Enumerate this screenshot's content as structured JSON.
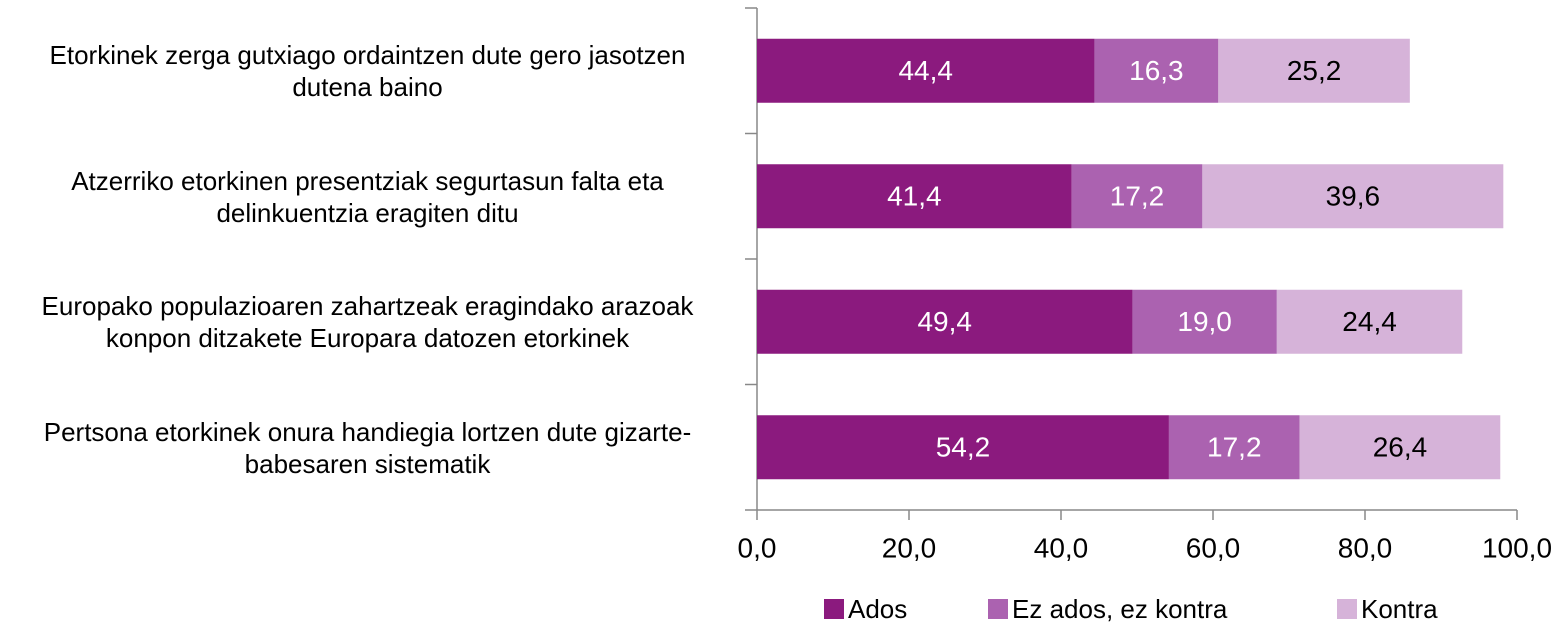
{
  "chart_data": {
    "type": "stacked_barh",
    "categories": [
      "Etorkinek zerga gutxiago ordaintzen dute gero jasotzen dutena baino",
      "Atzerriko etorkinen presentziak segurtasun falta eta delinkuentzia eragiten ditu",
      "Europako populazioaren zahartzeak eragindako arazoak konpon ditzakete Europara datozen etorkinek",
      "Pertsona etorkinek onura handiegia lortzen dute gizarte-babesaren sistematik"
    ],
    "series": [
      {
        "name": "Ados",
        "color": "#8b1a7e",
        "values": [
          44.4,
          41.4,
          49.4,
          54.2
        ],
        "value_labels": [
          "44,4",
          "41,4",
          "49,4",
          "54,2"
        ]
      },
      {
        "name": "Ez ados, ez kontra",
        "color": "#ab62b0",
        "values": [
          16.3,
          17.2,
          19.0,
          17.2
        ],
        "value_labels": [
          "16,3",
          "17,2",
          "19,0",
          "17,2"
        ]
      },
      {
        "name": "Kontra",
        "color": "#d6b3d9",
        "values": [
          25.2,
          39.6,
          24.4,
          26.4
        ],
        "value_labels": [
          "25,2",
          "39,6",
          "24,4",
          "26,4"
        ]
      }
    ],
    "xlim": [
      0,
      100
    ],
    "xticks": [
      {
        "value": 0,
        "label": "0,0"
      },
      {
        "value": 20,
        "label": "20,0"
      },
      {
        "value": 40,
        "label": "40,0"
      },
      {
        "value": 60,
        "label": "60,0"
      },
      {
        "value": 80,
        "label": "80,0"
      },
      {
        "value": 100,
        "label": "100,0"
      }
    ],
    "legend": "bottom"
  }
}
